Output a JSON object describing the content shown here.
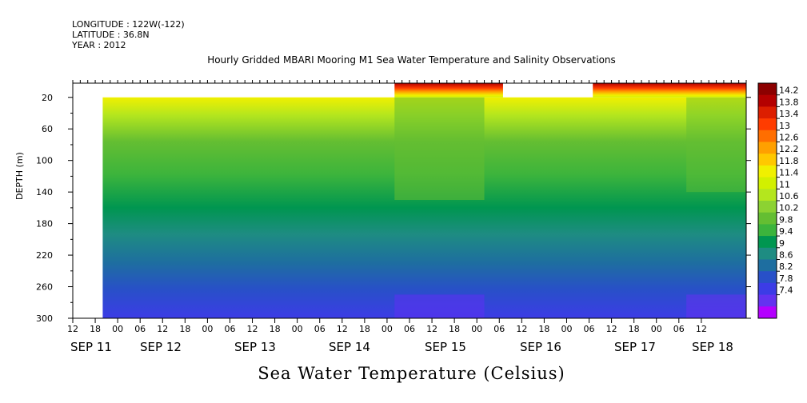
{
  "header": {
    "longitude": "LONGITUDE : 122W(-122)",
    "latitude": "LATITUDE : 36.8N",
    "year": "YEAR : 2012"
  },
  "chart_data": {
    "type": "heatmap",
    "title": "Hourly Gridded MBARI Mooring M1 Sea Water Temperature and Salinity Observations",
    "xlabel": "Sea Water Temperature (Celsius)",
    "ylabel": "DEPTH (m)",
    "y_ticks": [
      20,
      60,
      100,
      140,
      180,
      220,
      260,
      300
    ],
    "ylim": [
      300,
      2
    ],
    "x_hour_ticks": [
      "12",
      "18",
      "00",
      "06",
      "12",
      "18",
      "00",
      "06",
      "12",
      "18",
      "00",
      "06",
      "12",
      "18",
      "00",
      "06",
      "12",
      "18",
      "00",
      "06",
      "12",
      "18",
      "00",
      "06",
      "12",
      "18",
      "00",
      "06",
      "12"
    ],
    "x_day_labels": [
      "SEP 11",
      "SEP 12",
      "SEP 13",
      "SEP 14",
      "SEP 15",
      "SEP 16",
      "SEP 17",
      "SEP 18"
    ],
    "colorbar_labels": [
      "14.2",
      "13.8",
      "13.4",
      "13",
      "12.6",
      "12.2",
      "11.8",
      "11.4",
      "11",
      "10.6",
      "10.2",
      "9.8",
      "9.4",
      "9",
      "8.6",
      "8.2",
      "7.8",
      "7.4"
    ],
    "colorbar_colors": [
      "#8c0000",
      "#b40000",
      "#dc1e00",
      "#ff3c00",
      "#ff6e00",
      "#ffa000",
      "#ffc800",
      "#f0f000",
      "#d2f000",
      "#b4e61e",
      "#8cd232",
      "#64be32",
      "#3cb43c",
      "#009650",
      "#1e8c82",
      "#1e6ea0",
      "#2850c8",
      "#3c3ce6",
      "#6432f0",
      "#b400ff"
    ],
    "data_gaps": [
      {
        "from": "SEP 11 12",
        "to": "SEP 11 20",
        "depth": "all"
      },
      {
        "from": "SEP 11 20",
        "to": "SEP 15 02",
        "depth": "2-20"
      },
      {
        "from": "SEP 16 07",
        "to": "SEP 17 07",
        "depth": "2-20"
      }
    ],
    "grid": false,
    "legend": "right colorbar"
  }
}
